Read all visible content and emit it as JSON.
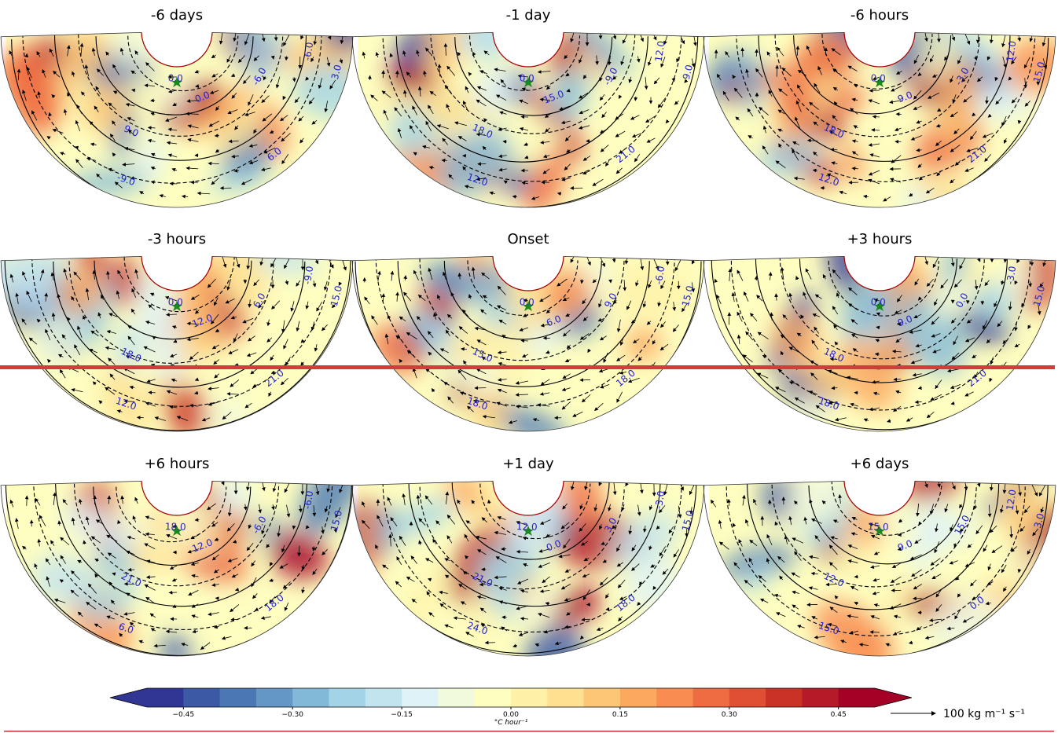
{
  "panels": [
    {
      "title": "-6 days",
      "contour_labels": [
        "-6.0",
        "-6.0",
        "0.0",
        "0.0",
        "9.0",
        "-9.0",
        "6.0",
        "3.0"
      ]
    },
    {
      "title": "-1 day",
      "contour_labels": [
        "12.0",
        "-9.0",
        "15.0",
        "0.0",
        "18.0",
        "12.0",
        "21.0",
        "9.0"
      ]
    },
    {
      "title": "-6 hours",
      "contour_labels": [
        "12.0",
        "-3.0",
        "9.0",
        "0.0",
        "18.0",
        "12.0",
        "21.0",
        "15.0"
      ]
    },
    {
      "title": "-3 hours",
      "contour_labels": [
        "-9.0",
        "6.0",
        "12.0",
        "0.0",
        "18.0",
        "12.0",
        "21.0",
        "15.0"
      ]
    },
    {
      "title": "Onset",
      "contour_labels": [
        "-6.0",
        "9.0",
        "6.0",
        "0.0",
        "15.0",
        "18.0",
        "18.0",
        "15.0"
      ]
    },
    {
      "title": "+3 hours",
      "contour_labels": [
        "-3.0",
        "0.0",
        "9.0",
        "0.0",
        "18.0",
        "18.0",
        "21.0",
        "15.0"
      ]
    },
    {
      "title": "+6 hours",
      "contour_labels": [
        "-6.0",
        "-6.0",
        "12.0",
        "18.0",
        "21.0",
        "6.0",
        "18.0",
        "15.0"
      ]
    },
    {
      "title": "+1 day",
      "contour_labels": [
        "-3.0",
        "3.0",
        "0.0",
        "12.0",
        "21.0",
        "24.0",
        "18.0",
        "15.0"
      ]
    },
    {
      "title": "+6 days",
      "contour_labels": [
        "12.0",
        "15.0",
        "9.0",
        "15.0",
        "12.0",
        "15.0",
        "0.0",
        "3.0"
      ]
    }
  ],
  "colorbar": {
    "lim": [
      -0.5,
      0.5
    ],
    "ticks": [
      {
        "value": -0.45,
        "label": "−0.45"
      },
      {
        "value": -0.3,
        "label": "−0.30"
      },
      {
        "value": -0.15,
        "label": "−0.15"
      },
      {
        "value": 0,
        "label": "0.00"
      },
      {
        "value": 0.15,
        "label": "0.15"
      },
      {
        "value": 0.3,
        "label": "0.30"
      },
      {
        "value": 0.45,
        "label": "0.45"
      }
    ],
    "label": "°C hour⁻¹",
    "colors": [
      "#313695",
      "#3c59a6",
      "#4b78b5",
      "#6597c6",
      "#83b9d8",
      "#a3d3e6",
      "#c2e4ef",
      "#def2f7",
      "#f2fadc",
      "#fefec0",
      "#fff1a8",
      "#fee090",
      "#fdc676",
      "#fca85e",
      "#f88c51",
      "#ef6b41",
      "#e04f33",
      "#cb3226",
      "#b51a28",
      "#a50026"
    ]
  },
  "vector_key": {
    "label": "100 kg m⁻¹ s⁻¹"
  }
}
